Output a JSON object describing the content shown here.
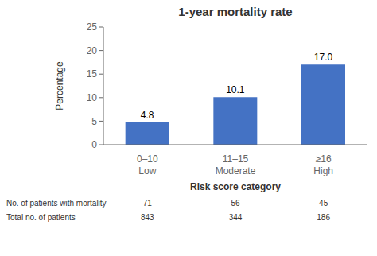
{
  "chart_data": {
    "type": "bar",
    "title": "1-year mortality rate",
    "categories": [
      "0–10\nLow",
      "11–15\nModerate",
      "≥16\nHigh"
    ],
    "values": [
      4.8,
      10.1,
      17.0
    ],
    "value_labels": [
      "4.8",
      "10.1",
      "17.0"
    ],
    "data_labels": true,
    "color": "#4472C4",
    "xlabel": "Risk score category",
    "ylabel": "Percentage",
    "ylim": [
      0,
      25
    ],
    "yticks": [
      0,
      5,
      10,
      15,
      20,
      25
    ],
    "grid": false,
    "table": [
      {
        "label": "No. of patients with mortality",
        "values": [
          71,
          56,
          45
        ]
      },
      {
        "label": "Total no. of patients",
        "values": [
          843,
          344,
          186
        ]
      }
    ]
  }
}
